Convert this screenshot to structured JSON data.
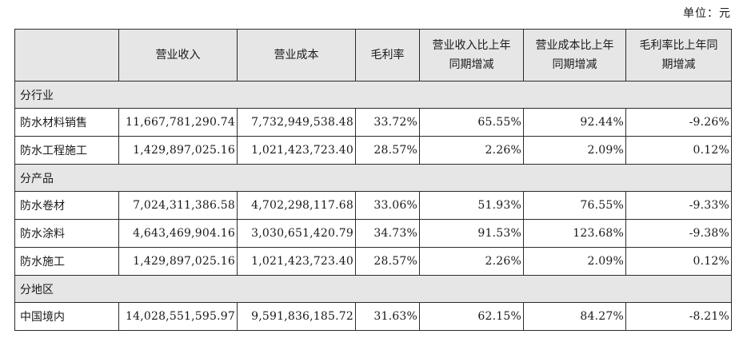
{
  "unit_label": "单位：元",
  "headers": {
    "blank": "",
    "revenue": "营业收入",
    "cost": "营业成本",
    "margin": "毛利率",
    "rev_change_l1": "营业收入比上年",
    "rev_change_l2": "同期增减",
    "cost_change_l1": "营业成本比上年",
    "cost_change_l2": "同期增减",
    "margin_change_l1": "毛利率比上年同",
    "margin_change_l2": "期增减"
  },
  "sections": {
    "industry": {
      "title": "分行业",
      "rows": [
        {
          "label": "防水材料销售",
          "revenue": "11,667,781,290.74",
          "cost": "7,732,949,538.48",
          "margin": "33.72%",
          "rev_change": "65.55%",
          "cost_change": "92.44%",
          "margin_change": "-9.26%"
        },
        {
          "label": "防水工程施工",
          "revenue": "1,429,897,025.16",
          "cost": "1,021,423,723.40",
          "margin": "28.57%",
          "rev_change": "2.26%",
          "cost_change": "2.09%",
          "margin_change": "0.12%"
        }
      ]
    },
    "product": {
      "title": "分产品",
      "rows": [
        {
          "label": "防水卷材",
          "revenue": "7,024,311,386.58",
          "cost": "4,702,298,117.68",
          "margin": "33.06%",
          "rev_change": "51.93%",
          "cost_change": "76.55%",
          "margin_change": "-9.33%"
        },
        {
          "label": "防水涂料",
          "revenue": "4,643,469,904.16",
          "cost": "3,030,651,420.79",
          "margin": "34.73%",
          "rev_change": "91.53%",
          "cost_change": "123.68%",
          "margin_change": "-9.38%"
        },
        {
          "label": "防水施工",
          "revenue": "1,429,897,025.16",
          "cost": "1,021,423,723.40",
          "margin": "28.57%",
          "rev_change": "2.26%",
          "cost_change": "2.09%",
          "margin_change": "0.12%"
        }
      ]
    },
    "region": {
      "title": "分地区",
      "rows": [
        {
          "label": "中国境内",
          "revenue": "14,028,551,595.97",
          "cost": "9,591,836,185.72",
          "margin": "31.63%",
          "rev_change": "62.15%",
          "cost_change": "84.27%",
          "margin_change": "-8.21%"
        }
      ]
    }
  }
}
